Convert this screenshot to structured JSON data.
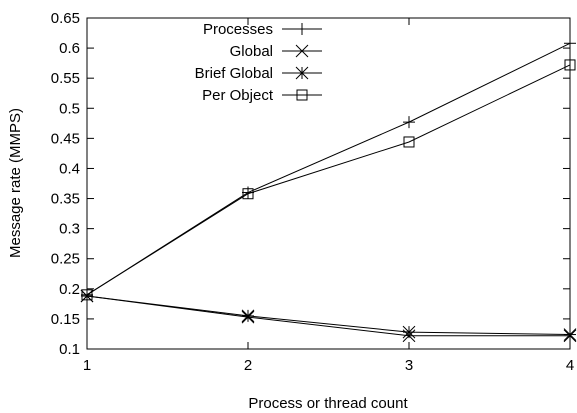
{
  "chart_data": {
    "type": "line",
    "title": "",
    "xlabel": "Process or thread count",
    "ylabel": "Message rate (MMPS)",
    "x": [
      1,
      2,
      3,
      4
    ],
    "xlim": [
      1,
      4
    ],
    "ylim": [
      0.1,
      0.65
    ],
    "xticks": [
      "1",
      "2",
      "3",
      "4"
    ],
    "yticks": [
      "0.1",
      "0.15",
      "0.2",
      "0.25",
      "0.3",
      "0.35",
      "0.4",
      "0.45",
      "0.5",
      "0.55",
      "0.6",
      "0.65"
    ],
    "grid": false,
    "legend_position": "top-left",
    "series": [
      {
        "name": "Processes",
        "marker": "plus",
        "values": [
          0.19,
          0.36,
          0.477,
          0.608
        ]
      },
      {
        "name": "Global",
        "marker": "cross",
        "values": [
          0.188,
          0.153,
          0.122,
          0.122
        ]
      },
      {
        "name": "Brief Global",
        "marker": "star",
        "values": [
          0.188,
          0.155,
          0.128,
          0.124
        ]
      },
      {
        "name": "Per Object",
        "marker": "square",
        "values": [
          0.19,
          0.358,
          0.444,
          0.572
        ]
      }
    ]
  }
}
